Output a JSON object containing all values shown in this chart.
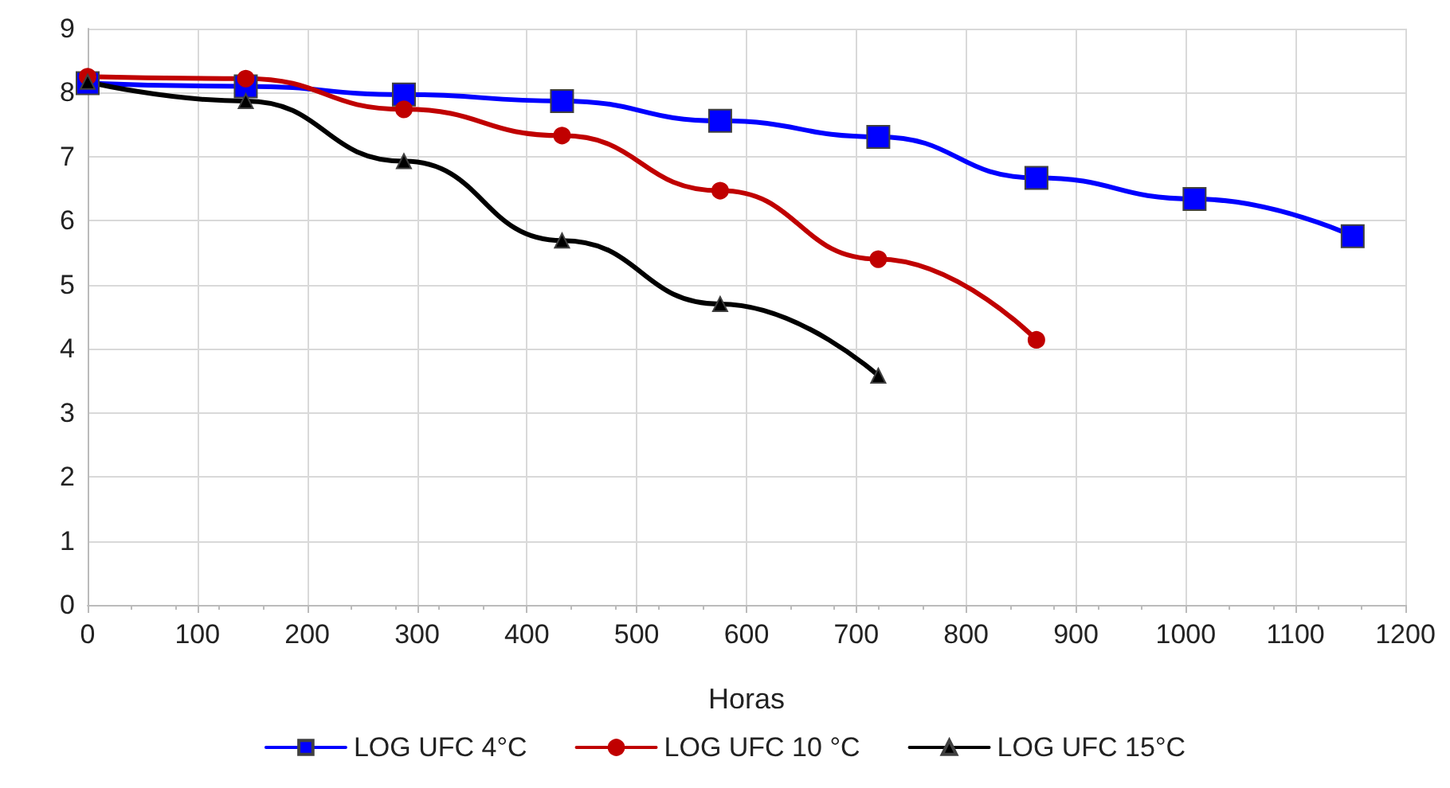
{
  "chart_data": {
    "type": "line",
    "xlabel": "Horas",
    "x": [
      0,
      144,
      288,
      432,
      576,
      720,
      864,
      1008,
      1152
    ],
    "series": [
      {
        "name": "LOG UFC 4°C",
        "color": "#0000ff",
        "marker": "square",
        "values": [
          8.15,
          8.1,
          7.97,
          7.87,
          7.56,
          7.31,
          6.67,
          6.34,
          5.76
        ]
      },
      {
        "name": "LOG UFC 10 °C",
        "color": "#c00000",
        "marker": "circle",
        "values": [
          8.25,
          8.22,
          7.74,
          7.33,
          6.47,
          5.4,
          4.14,
          null,
          null
        ]
      },
      {
        "name": "LOG UFC 15°C",
        "color": "#000000",
        "marker": "triangle",
        "values": [
          8.17,
          7.87,
          6.93,
          5.69,
          4.7,
          3.58,
          null,
          null,
          null
        ]
      }
    ],
    "xlim": [
      0,
      1200
    ],
    "xticks": [
      0,
      100,
      200,
      300,
      400,
      500,
      600,
      700,
      800,
      900,
      1000,
      1100,
      1200
    ],
    "ylim": [
      0,
      9
    ],
    "yticks": [
      0,
      1,
      2,
      3,
      4,
      5,
      6,
      7,
      8,
      9
    ],
    "grid": true,
    "legend": "bottom",
    "line_style": "solid"
  }
}
